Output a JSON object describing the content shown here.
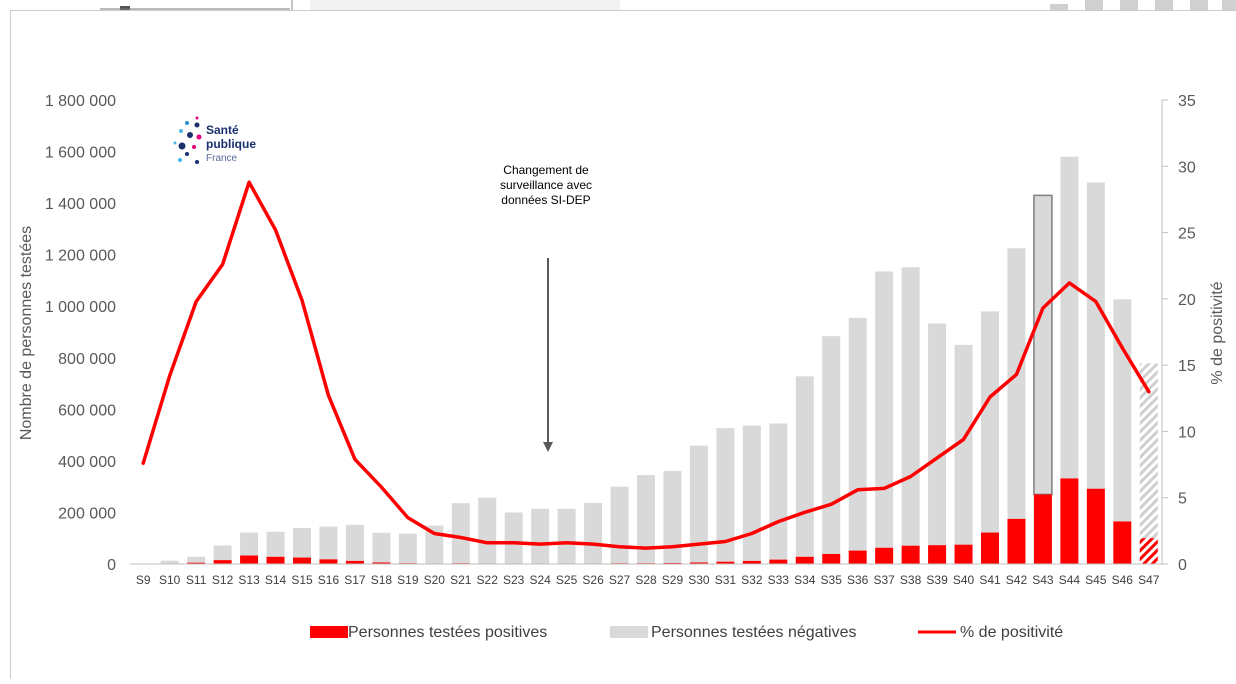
{
  "chart_data": {
    "type": "bar",
    "categories": [
      "S9",
      "S10",
      "S11",
      "S12",
      "S13",
      "S14",
      "S15",
      "S16",
      "S17",
      "S18",
      "S19",
      "S20",
      "S21",
      "S22",
      "S23",
      "S24",
      "S25",
      "S26",
      "S27",
      "S28",
      "S29",
      "S30",
      "S31",
      "S32",
      "S33",
      "S34",
      "S35",
      "S36",
      "S37",
      "S38",
      "S39",
      "S40",
      "S41",
      "S42",
      "S43",
      "S44",
      "S45",
      "S46",
      "S47"
    ],
    "series": [
      {
        "name": "Personnes testées positives",
        "type": "bar",
        "axis": "left",
        "color": "#ff0000",
        "values": [
          0,
          1000,
          5000,
          15000,
          33000,
          28000,
          25000,
          18000,
          12000,
          6000,
          3000,
          2000,
          3000,
          2000,
          2000,
          2000,
          2000,
          2000,
          3000,
          3000,
          4000,
          6000,
          9000,
          12000,
          17000,
          28000,
          39000,
          52000,
          63000,
          71000,
          73000,
          75000,
          122000,
          175000,
          270000,
          332000,
          292000,
          165000,
          100000
        ]
      },
      {
        "name": "Personnes testées négatives",
        "type": "bar",
        "axis": "left",
        "color": "#d9d9d9",
        "values": [
          0,
          12000,
          23000,
          57000,
          89000,
          97000,
          115000,
          127000,
          140000,
          115000,
          115000,
          147000,
          233000,
          255000,
          198000,
          212000,
          212000,
          235000,
          297000,
          342000,
          357000,
          453000,
          518000,
          525000,
          528000,
          700000,
          845000,
          903000,
          1072000,
          1080000,
          860000,
          775000,
          858000,
          1050000,
          1160000,
          1248000,
          1188000,
          862000,
          678000
        ]
      },
      {
        "name": "% de positivité",
        "type": "line",
        "axis": "right",
        "color": "#ff0000",
        "values": [
          7.6,
          14.2,
          19.8,
          22.6,
          28.8,
          25.2,
          19.9,
          12.7,
          7.9,
          5.8,
          3.5,
          2.3,
          2.0,
          1.6,
          1.6,
          1.5,
          1.6,
          1.5,
          1.3,
          1.2,
          1.3,
          1.5,
          1.7,
          2.3,
          3.2,
          3.9,
          4.5,
          5.6,
          5.7,
          6.6,
          8.0,
          9.4,
          12.6,
          14.3,
          19.3,
          21.2,
          19.8,
          16.3,
          13.0
        ]
      }
    ],
    "ylabel": "Nombre de personnes testées",
    "y2label": "% de positivité",
    "ylim": [
      0,
      1800000
    ],
    "y2lim": [
      0,
      35
    ],
    "yticks": [
      "0",
      "200 000",
      "400 000",
      "600 000",
      "800 000",
      "1 000 000",
      "1 200 000",
      "1 400 000",
      "1 600 000",
      "1 800 000"
    ],
    "y2ticks": [
      "0",
      "5",
      "10",
      "15",
      "20",
      "25",
      "30",
      "35"
    ],
    "hatched_last_week": "S47",
    "outlined_week": "S43",
    "annotation": {
      "text": [
        "Changement de",
        "surveillance avec",
        "données SI-DEP"
      ],
      "at_category": "S24"
    },
    "logo": {
      "line1": "Santé",
      "line2": "publique",
      "line3": "France"
    },
    "legend_position": "bottom",
    "grid": false
  }
}
